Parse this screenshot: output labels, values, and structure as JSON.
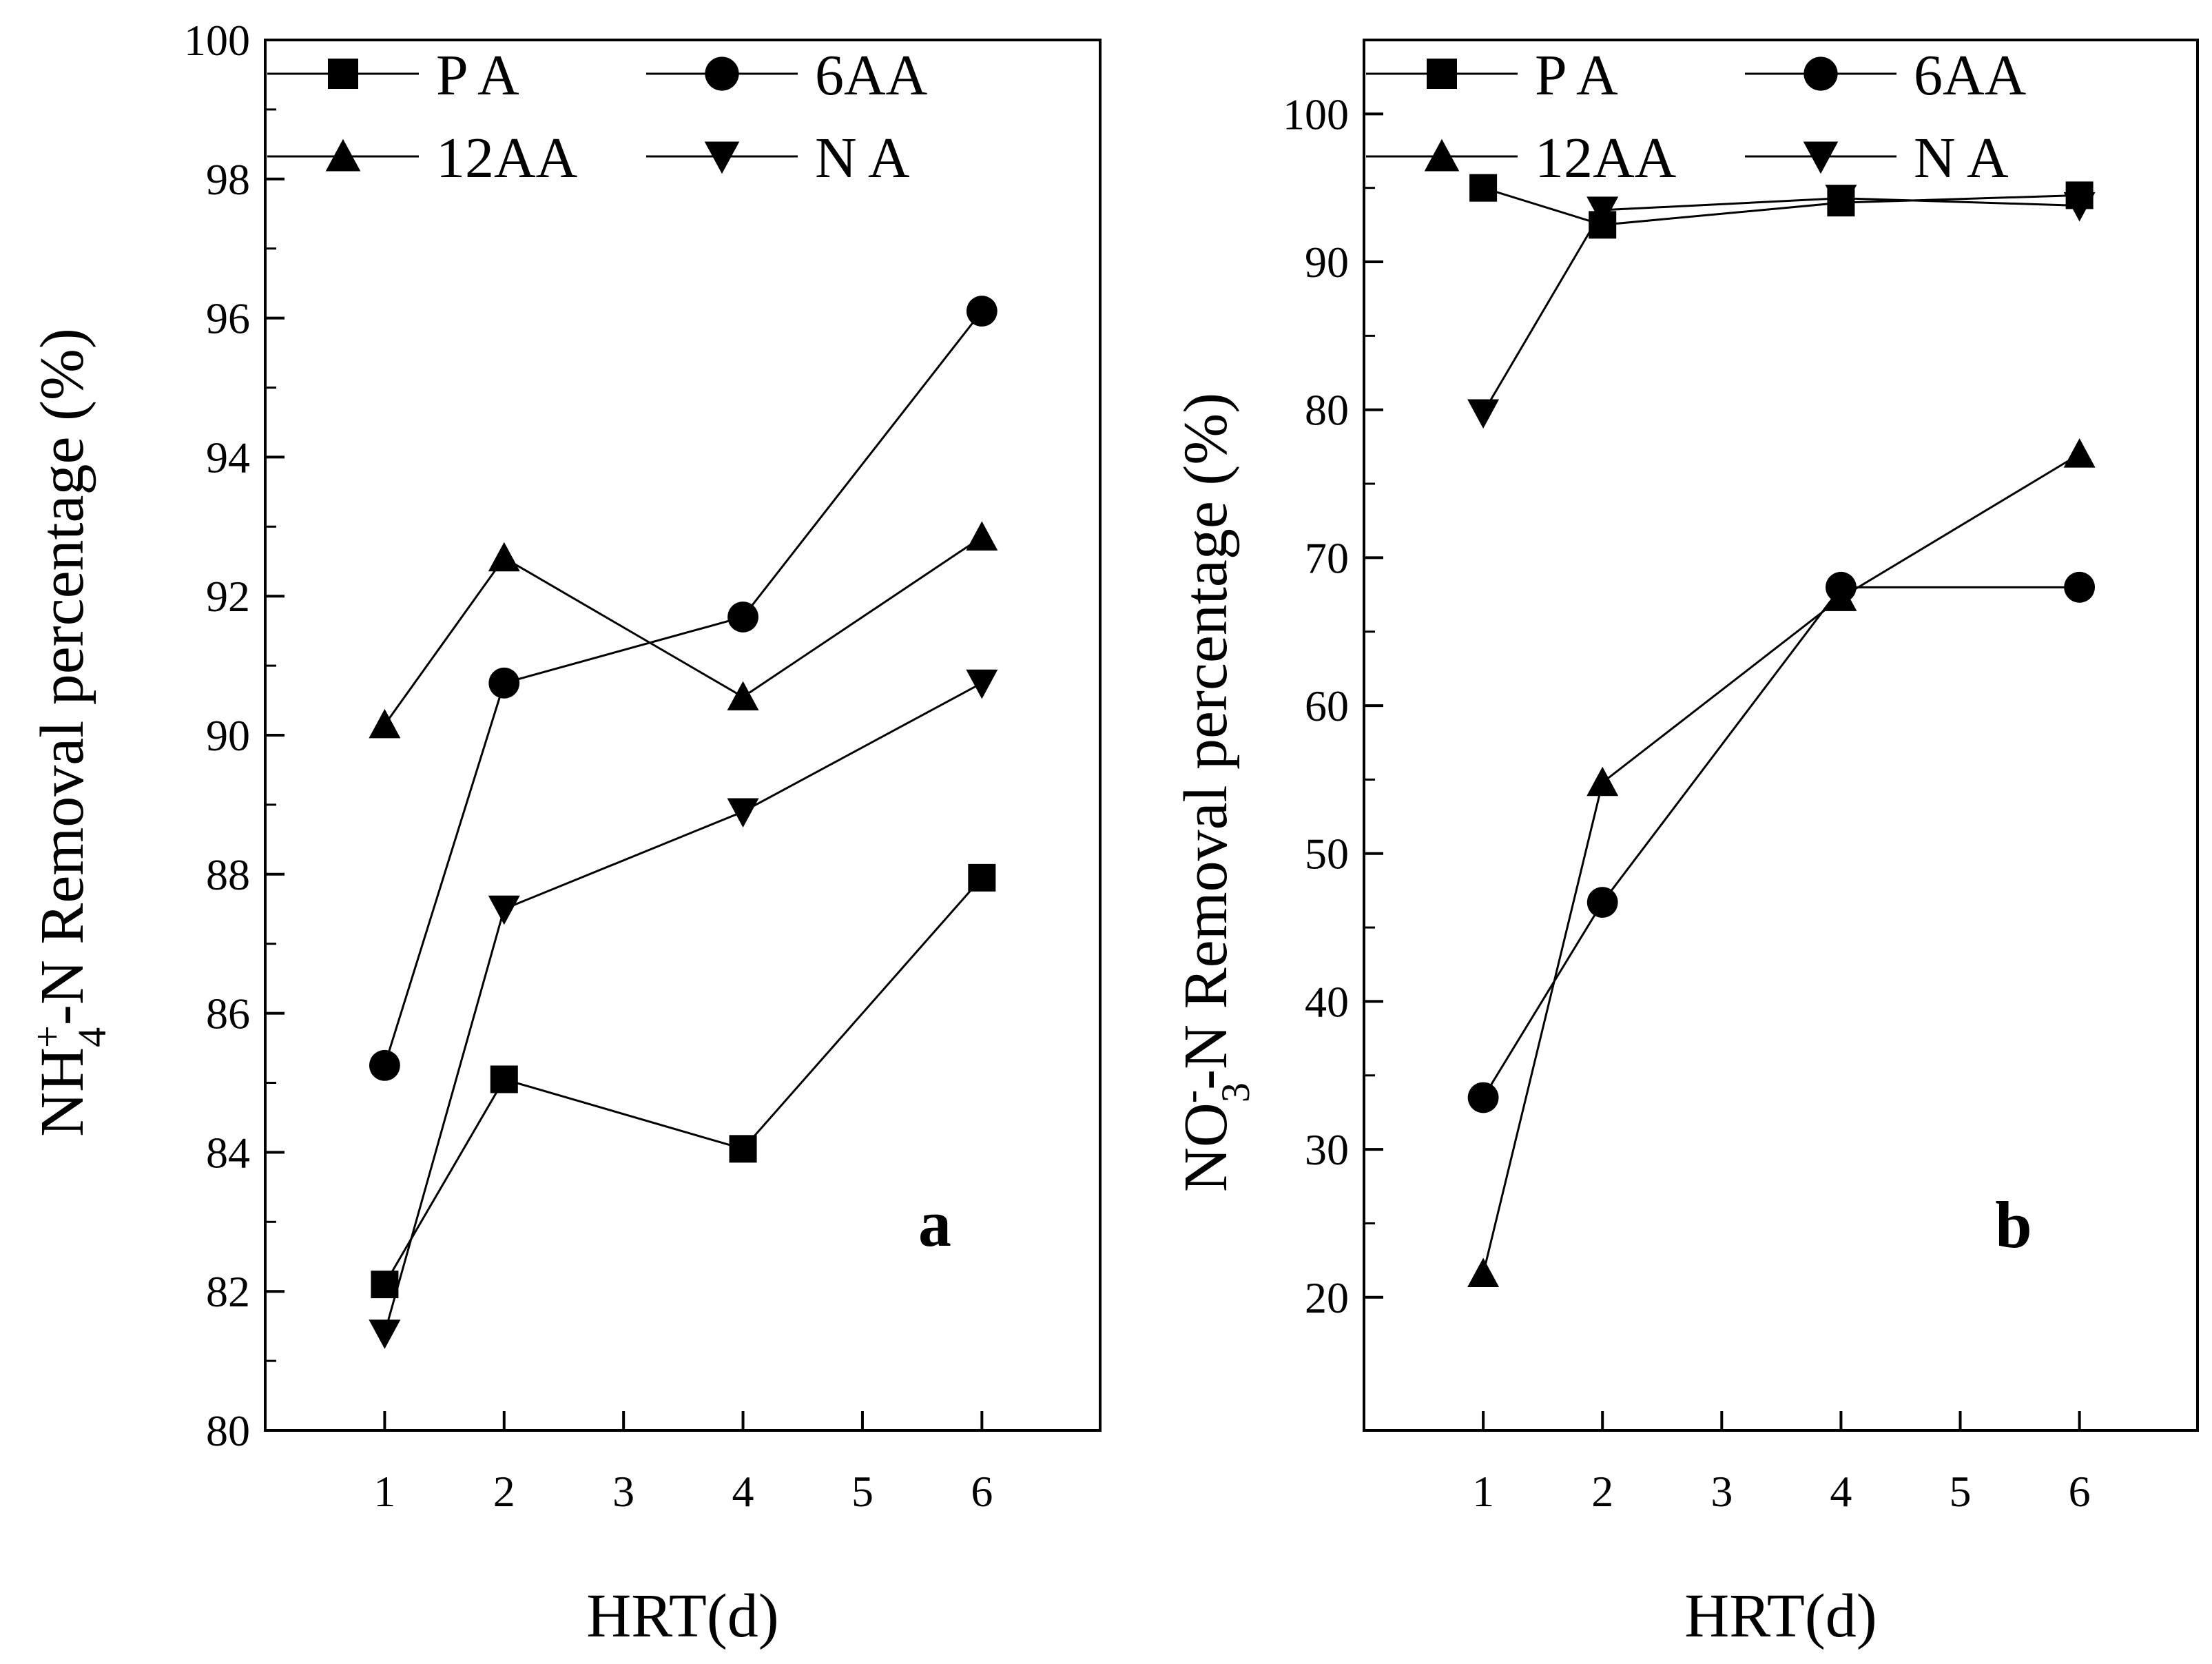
{
  "chart_data": [
    {
      "type": "line",
      "panel_label": "a",
      "ylabel": {
        "main": "NH",
        "sub": "4",
        "sup": "+",
        "rest": "-N Removal percentage (%)"
      },
      "xlabel": "HRT(d)",
      "categories": [
        "1",
        "2",
        "3",
        "4",
        "5",
        "6"
      ],
      "ylim": [
        80,
        100
      ],
      "yticks": [
        80,
        82,
        84,
        86,
        88,
        90,
        92,
        94,
        96,
        98,
        100
      ],
      "legend": {
        "placement": "top-left"
      },
      "series": [
        {
          "name": "P A",
          "marker": "square",
          "x": [
            1,
            2,
            4,
            6
          ],
          "values": [
            82.1,
            85.05,
            84.05,
            87.95
          ]
        },
        {
          "name": "6AA",
          "marker": "circle",
          "x": [
            1,
            2,
            4,
            6
          ],
          "values": [
            85.25,
            90.75,
            91.7,
            96.1
          ]
        },
        {
          "name": "12AA",
          "marker": "triangle-up",
          "x": [
            1,
            2,
            4,
            6
          ],
          "values": [
            90.15,
            92.55,
            90.55,
            92.85
          ]
        },
        {
          "name": "N A",
          "marker": "triangle-down",
          "x": [
            1,
            2,
            4,
            6
          ],
          "values": [
            81.4,
            87.5,
            88.9,
            90.75
          ]
        }
      ]
    },
    {
      "type": "line",
      "panel_label": "b",
      "ylabel": {
        "main": "NO",
        "sub": "3",
        "sup": "-",
        "rest": "-N Removal percentage (%)"
      },
      "xlabel": "HRT(d)",
      "categories": [
        "1",
        "2",
        "3",
        "4",
        "5",
        "6"
      ],
      "ylim": [
        11,
        105
      ],
      "yticks": [
        20,
        30,
        40,
        50,
        60,
        70,
        80,
        90,
        100
      ],
      "legend": {
        "placement": "top-left"
      },
      "series": [
        {
          "name": "P A",
          "marker": "square",
          "x": [
            1,
            2,
            4,
            6
          ],
          "values": [
            95.0,
            92.5,
            94.0,
            94.5
          ]
        },
        {
          "name": "6AA",
          "marker": "circle",
          "x": [
            1,
            2,
            4,
            6
          ],
          "values": [
            33.5,
            46.7,
            68.0,
            68.0
          ]
        },
        {
          "name": "12AA",
          "marker": "triangle-up",
          "x": [
            1,
            2,
            4,
            6
          ],
          "values": [
            21.6,
            54.8,
            67.3,
            77.0
          ]
        },
        {
          "name": "N A",
          "marker": "triangle-down",
          "x": [
            1,
            2,
            4,
            6
          ],
          "values": [
            79.8,
            93.5,
            94.3,
            93.8
          ]
        }
      ]
    }
  ]
}
